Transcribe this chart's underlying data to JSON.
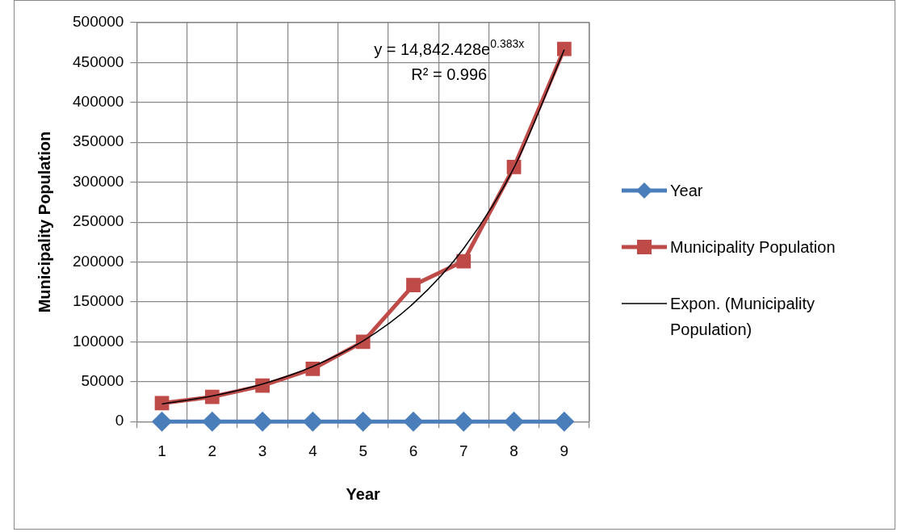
{
  "chart_data": {
    "type": "line",
    "xlabel": "Year",
    "ylabel": "Municipality Population",
    "x": [
      1,
      2,
      3,
      4,
      5,
      6,
      7,
      8,
      9
    ],
    "xlim": [
      0.5,
      9.5
    ],
    "xticks": [
      1,
      2,
      3,
      4,
      5,
      6,
      7,
      8,
      9
    ],
    "ylim": [
      0,
      500000
    ],
    "yticks": [
      0,
      50000,
      100000,
      150000,
      200000,
      250000,
      300000,
      350000,
      400000,
      450000,
      500000
    ],
    "series": [
      {
        "name": "Year",
        "color": "#4a7ebb",
        "marker": "diamond",
        "values": [
          0,
          0,
          0,
          0,
          0,
          0,
          0,
          0,
          0
        ]
      },
      {
        "name": "Municipality Population",
        "color": "#be4b48",
        "marker": "square",
        "values": [
          23000,
          31000,
          45000,
          66000,
          100000,
          171000,
          201000,
          319000,
          467000
        ]
      },
      {
        "name": "Expon. (Municipality Population)",
        "color": "#000000",
        "marker": "none",
        "x": [
          1,
          2,
          3,
          4,
          5,
          6,
          7,
          8,
          9
        ],
        "values": [
          22000,
          32000,
          47000,
          69000,
          101000,
          148000,
          217000,
          318000,
          466000
        ]
      }
    ],
    "annotations": [
      "y = 14,842.428e$^{0.383x}$",
      "R² = 0.996"
    ],
    "grid": true,
    "legend": "right"
  }
}
